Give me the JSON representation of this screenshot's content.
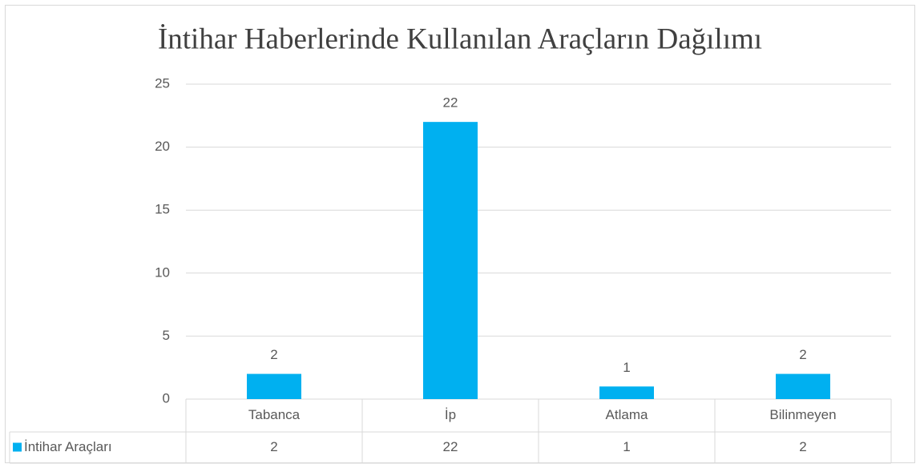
{
  "chart_data": {
    "type": "bar",
    "title": "İntihar Haberlerinde Kullanılan Araçların Dağılımı",
    "categories": [
      "Tabanca",
      "İp",
      "Atlama",
      "Bilinmeyen"
    ],
    "series": [
      {
        "name": "İntihar Araçları",
        "color": "#00b0f0",
        "values": [
          2,
          22,
          1,
          2
        ]
      }
    ],
    "ylim": [
      0,
      25
    ],
    "yticks": [
      0,
      5,
      10,
      15,
      20,
      25
    ],
    "grid": true
  }
}
